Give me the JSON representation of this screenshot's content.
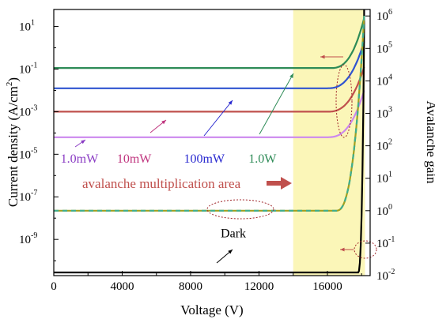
{
  "chart_data": {
    "type": "line",
    "title": "",
    "xlabel": "Voltage (V)",
    "ylabel_left_prefix": "Current density (A/cm",
    "ylabel_left_sup": "2",
    "ylabel_left_suffix": ")",
    "ylabel_right": "Avalanche gain",
    "xlim": [
      0,
      18500
    ],
    "x_ticks": [
      0,
      4000,
      8000,
      12000,
      16000
    ],
    "x_tick_labels": [
      "0",
      "4000",
      "8000",
      "12000",
      "16000"
    ],
    "ylim_left_log10": [
      -10.7,
      1.8
    ],
    "y_left_ticks": [
      {
        "exp": 1,
        "base": "10",
        "sup": "1"
      },
      {
        "exp": -1,
        "base": "10",
        "sup": "-1"
      },
      {
        "exp": -3,
        "base": "10",
        "sup": "-3"
      },
      {
        "exp": -5,
        "base": "10",
        "sup": "-5"
      },
      {
        "exp": -7,
        "base": "10",
        "sup": "-7"
      },
      {
        "exp": -9,
        "base": "10",
        "sup": "-9"
      }
    ],
    "ylim_right_log10": [
      -2,
      6.2
    ],
    "y_right_ticks": [
      {
        "exp": 6,
        "base": "10",
        "sup": "6"
      },
      {
        "exp": 5,
        "base": "10",
        "sup": "5"
      },
      {
        "exp": 4,
        "base": "10",
        "sup": "4"
      },
      {
        "exp": 3,
        "base": "10",
        "sup": "3"
      },
      {
        "exp": 2,
        "base": "10",
        "sup": "2"
      },
      {
        "exp": 1,
        "base": "10",
        "sup": "1"
      },
      {
        "exp": 0,
        "base": "10",
        "sup": "0"
      },
      {
        "exp": -1,
        "base": "10",
        "sup": "-1"
      },
      {
        "exp": -2,
        "base": "10",
        "sup": "-2"
      }
    ],
    "shaded_region": {
      "x": [
        14000,
        18200
      ],
      "color": "#fbf6b8"
    },
    "series": [
      {
        "name": "1.0W",
        "color": "#2e8b57",
        "axis": "left",
        "flat_log10": -0.95,
        "knee_x": 16200,
        "end_log10": 1.4
      },
      {
        "name": "100mW",
        "color": "#2f54d0",
        "axis": "left",
        "flat_log10": -1.9,
        "knee_x": 16000,
        "end_log10": 0.3
      },
      {
        "name": "10mW",
        "color": "#c0504d",
        "axis": "left",
        "flat_log10": -3.0,
        "knee_x": 16000,
        "end_log10": -0.9
      },
      {
        "name": "1.0mW",
        "color": "#cc88ee",
        "axis": "left",
        "flat_log10": -4.2,
        "knee_x": 16000,
        "end_log10": -2.0
      },
      {
        "name": "Dark",
        "color": "#000000",
        "axis": "left",
        "flat_log10": -10.55,
        "knee_x": 17800,
        "end_log10": 1.0
      },
      {
        "name": "",
        "color": "#a0a020",
        "dash_color": "#3fae8f",
        "axis": "right",
        "flat_log10": 0.0,
        "knee_x": 16500,
        "end_log10": 6.0
      }
    ],
    "annotations": {
      "area_label": "avalanche multiplication area",
      "labels": [
        {
          "text": "1.0mW",
          "color": "#8a3cc4",
          "x": 1500,
          "y_log10": -5.4
        },
        {
          "text": "10mW",
          "color": "#c0357f",
          "x": 4700,
          "y_log10": -5.4
        },
        {
          "text": "100mW",
          "color": "#2a2ad0",
          "x": 8800,
          "y_log10": -5.4
        },
        {
          "text": "1.0W",
          "color": "#2e8b57",
          "x": 12200,
          "y_log10": -5.4
        },
        {
          "text": "Dark",
          "color": "#000000",
          "x": 10500,
          "y_log10": -8.9
        }
      ]
    }
  }
}
